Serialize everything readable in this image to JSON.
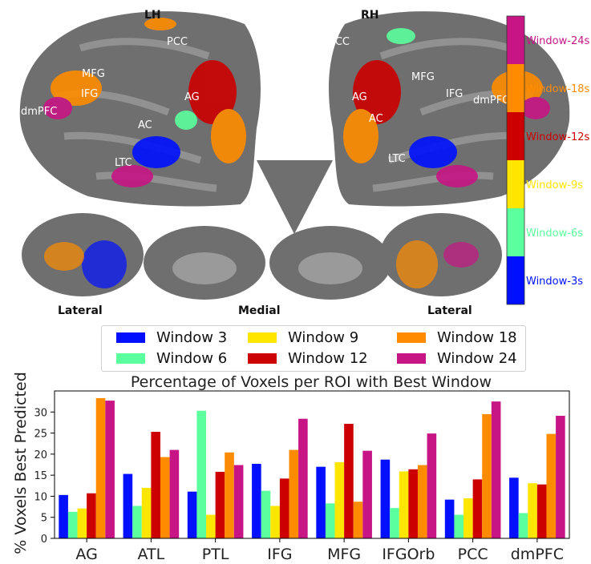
{
  "brain": {
    "lh_label": "LH",
    "rh_label": "RH",
    "regions_left": [
      "PCC",
      "MFG",
      "IFG",
      "dmPFC",
      "AG",
      "AC",
      "LTC"
    ],
    "regions_right": [
      "PCC",
      "MFG",
      "IFG",
      "dmPFC",
      "AG",
      "AC",
      "LTC"
    ],
    "view_lateral": "Lateral",
    "view_medial": "Medial",
    "colorbar": [
      {
        "label": "Window-24s",
        "color": "#c71585"
      },
      {
        "label": "Window-18s",
        "color": "#ff8c00"
      },
      {
        "label": "Window-12s",
        "color": "#cc0000"
      },
      {
        "label": "Window-9s",
        "color": "#ffe600"
      },
      {
        "label": "Window-6s",
        "color": "#5cff9d"
      },
      {
        "label": "Window-3s",
        "color": "#0010ff"
      }
    ]
  },
  "legend": [
    {
      "label": "Window 3",
      "color": "#0010ff"
    },
    {
      "label": "Window 6",
      "color": "#5cff9d"
    },
    {
      "label": "Window 9",
      "color": "#ffe600"
    },
    {
      "label": "Window 12",
      "color": "#cc0000"
    },
    {
      "label": "Window 18",
      "color": "#ff8c00"
    },
    {
      "label": "Window 24",
      "color": "#c71585"
    }
  ],
  "chart_data": {
    "type": "bar",
    "title": "Percentage of Voxels per ROI with Best Window",
    "ylabel": "% Voxels Best Predicted",
    "xlabel": "",
    "ylim": [
      0,
      35
    ],
    "yticks": [
      0,
      5,
      10,
      15,
      20,
      25,
      30
    ],
    "categories": [
      "AG",
      "ATL",
      "PTL",
      "IFG",
      "MFG",
      "IFGOrb",
      "PCC",
      "dmPFC"
    ],
    "series": [
      {
        "name": "Window 3",
        "color": "#0010ff",
        "values": [
          10.3,
          15.3,
          11.1,
          17.7,
          17.0,
          18.7,
          9.2,
          14.4
        ]
      },
      {
        "name": "Window 6",
        "color": "#5cff9d",
        "values": [
          6.3,
          7.7,
          30.3,
          11.3,
          8.3,
          7.2,
          5.6,
          6.0
        ]
      },
      {
        "name": "Window 9",
        "color": "#ffe600",
        "values": [
          7.1,
          12.0,
          5.6,
          7.7,
          18.1,
          15.9,
          9.5,
          13.1
        ]
      },
      {
        "name": "Window 12",
        "color": "#cc0000",
        "values": [
          10.7,
          25.3,
          15.8,
          14.2,
          27.2,
          16.4,
          14.0,
          12.8
        ]
      },
      {
        "name": "Window 18",
        "color": "#ff8c00",
        "values": [
          33.3,
          19.3,
          20.4,
          21.0,
          8.7,
          17.4,
          29.5,
          24.8
        ]
      },
      {
        "name": "Window 24",
        "color": "#c71585",
        "values": [
          32.7,
          21.0,
          17.4,
          28.4,
          20.8,
          24.9,
          32.5,
          29.1
        ]
      }
    ]
  }
}
